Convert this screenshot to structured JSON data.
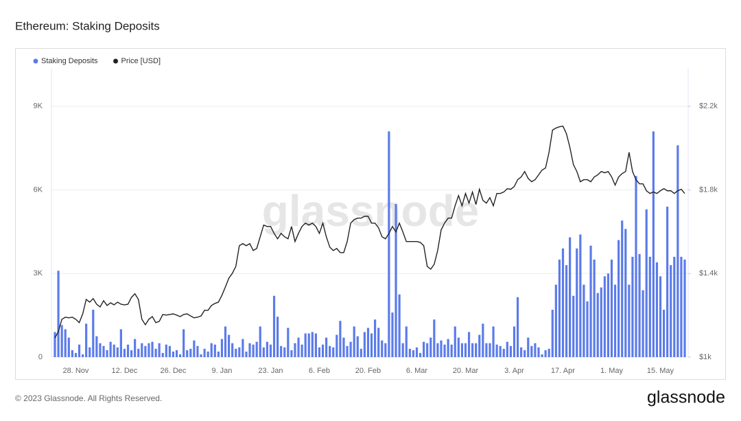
{
  "chart_data": {
    "type": "combo",
    "title": "Ethereum: Staking Deposits",
    "watermark": "glassnode",
    "categories": [
      null,
      null,
      null,
      null,
      null,
      null,
      "28. Nov",
      null,
      null,
      null,
      null,
      null,
      null,
      null,
      null,
      null,
      null,
      null,
      null,
      null,
      "12. Dec",
      null,
      null,
      null,
      null,
      null,
      null,
      null,
      null,
      null,
      null,
      null,
      null,
      null,
      "26. Dec",
      null,
      null,
      null,
      null,
      null,
      null,
      null,
      null,
      null,
      null,
      null,
      null,
      null,
      "9. Jan",
      null,
      null,
      null,
      null,
      null,
      null,
      null,
      null,
      null,
      null,
      null,
      null,
      null,
      "23. Jan",
      null,
      null,
      null,
      null,
      null,
      null,
      null,
      null,
      null,
      null,
      null,
      null,
      null,
      "6. Feb",
      null,
      null,
      null,
      null,
      null,
      null,
      null,
      null,
      null,
      null,
      null,
      null,
      null,
      "20. Feb",
      null,
      null,
      null,
      null,
      null,
      null,
      null,
      null,
      null,
      null,
      null,
      null,
      null,
      "6. Mar",
      null,
      null,
      null,
      null,
      null,
      null,
      null,
      null,
      null,
      null,
      null,
      null,
      null,
      "20. Mar",
      null,
      null,
      null,
      null,
      null,
      null,
      null,
      null,
      null,
      null,
      null,
      null,
      null,
      "3. Apr",
      null,
      null,
      null,
      null,
      null,
      null,
      null,
      null,
      null,
      null,
      null,
      null,
      null,
      "17. Apr",
      null,
      null,
      null,
      null,
      null,
      null,
      null,
      null,
      null,
      null,
      null,
      null,
      null,
      "1. May",
      null,
      null,
      null,
      null,
      null,
      null,
      null,
      null,
      null,
      null,
      null,
      null,
      null,
      "15. May",
      null,
      null,
      null,
      null,
      null,
      null,
      null
    ],
    "series": [
      {
        "name": "Staking Deposits",
        "type": "bar",
        "color": "#5b7be9",
        "axis": "y",
        "values": [
          900,
          3100,
          1150,
          1000,
          700,
          250,
          150,
          450,
          100,
          1200,
          350,
          1700,
          750,
          500,
          400,
          250,
          550,
          450,
          350,
          1000,
          300,
          450,
          250,
          650,
          300,
          500,
          400,
          500,
          550,
          300,
          500,
          150,
          450,
          400,
          200,
          250,
          100,
          1000,
          250,
          300,
          600,
          400,
          100,
          300,
          200,
          500,
          450,
          200,
          650,
          1100,
          800,
          500,
          300,
          350,
          650,
          200,
          500,
          450,
          550,
          1100,
          350,
          550,
          450,
          2200,
          1450,
          400,
          350,
          1050,
          250,
          500,
          700,
          450,
          850,
          850,
          900,
          850,
          350,
          450,
          700,
          400,
          350,
          800,
          1300,
          700,
          400,
          550,
          1100,
          750,
          300,
          900,
          1050,
          850,
          1350,
          1050,
          600,
          500,
          8100,
          1600,
          5500,
          2250,
          500,
          1100,
          300,
          250,
          350,
          150,
          550,
          500,
          700,
          1350,
          500,
          600,
          450,
          650,
          450,
          1100,
          700,
          500,
          500,
          900,
          500,
          500,
          800,
          1200,
          500,
          500,
          1100,
          450,
          400,
          300,
          550,
          400,
          1100,
          2150,
          350,
          250,
          700,
          400,
          500,
          350,
          100,
          250,
          300,
          1700,
          2600,
          3500,
          3900,
          3300,
          4300,
          2200,
          3900,
          4400,
          2600,
          2000,
          4000,
          3500,
          2300,
          2500,
          2900,
          3000,
          3500,
          2600,
          4200,
          4900,
          4600,
          2600,
          3600,
          6500,
          3700,
          2400,
          5300,
          3600,
          8100,
          3400,
          2900,
          1700,
          5400,
          3300,
          3600,
          7600,
          3600,
          3500
        ]
      },
      {
        "name": "Price [USD]",
        "type": "line",
        "color": "#222222",
        "axis": "y2",
        "values": [
          1092,
          1122,
          1181,
          1191,
          1188,
          1191,
          1181,
          1165,
          1207,
          1276,
          1263,
          1280,
          1253,
          1240,
          1270,
          1247,
          1260,
          1250,
          1263,
          1253,
          1250,
          1253,
          1286,
          1303,
          1276,
          1181,
          1155,
          1181,
          1194,
          1165,
          1171,
          1204,
          1201,
          1204,
          1207,
          1201,
          1194,
          1204,
          1207,
          1197,
          1188,
          1191,
          1197,
          1224,
          1224,
          1247,
          1257,
          1263,
          1296,
          1336,
          1378,
          1401,
          1434,
          1533,
          1543,
          1533,
          1543,
          1510,
          1520,
          1576,
          1632,
          1625,
          1625,
          1592,
          1566,
          1592,
          1576,
          1566,
          1625,
          1553,
          1592,
          1625,
          1641,
          1632,
          1641,
          1625,
          1592,
          1641,
          1576,
          1526,
          1510,
          1520,
          1500,
          1500,
          1553,
          1641,
          1658,
          1665,
          1665,
          1674,
          1674,
          1641,
          1641,
          1619,
          1576,
          1566,
          1592,
          1625,
          1599,
          1641,
          1599,
          1553,
          1553,
          1553,
          1553,
          1549,
          1533,
          1434,
          1421,
          1444,
          1510,
          1609,
          1641,
          1665,
          1665,
          1724,
          1773,
          1724,
          1783,
          1737,
          1790,
          1730,
          1803,
          1750,
          1737,
          1763,
          1724,
          1783,
          1783,
          1790,
          1806,
          1803,
          1816,
          1849,
          1862,
          1888,
          1855,
          1839,
          1849,
          1872,
          1895,
          1905,
          1980,
          2086,
          2096,
          2102,
          2105,
          2069,
          2003,
          1921,
          1888,
          1839,
          1849,
          1849,
          1839,
          1862,
          1872,
          1888,
          1882,
          1888,
          1862,
          1823,
          1862,
          1878,
          1888,
          1980,
          1888,
          1849,
          1829,
          1829,
          1796,
          1783,
          1790,
          1783,
          1796,
          1806,
          1796,
          1796,
          1783,
          1796,
          1803,
          1783
        ]
      }
    ],
    "ylim": [
      0,
      10350
    ],
    "yticks": [
      0,
      {
        "value": 3000,
        "label": "3K"
      },
      {
        "value": 6000,
        "label": "6K"
      },
      {
        "value": 9000,
        "label": "9K"
      }
    ],
    "y2lim": [
      1000,
      2380
    ],
    "y2ticks": [
      {
        "value": 1000,
        "label": "$1k"
      },
      {
        "value": 1400,
        "label": "$1.4k"
      },
      {
        "value": 1800,
        "label": "$1.8k"
      },
      {
        "value": 2200,
        "label": "$2.2k"
      }
    ],
    "grid": true,
    "legend": "top-left"
  },
  "footer": "© 2023 Glassnode. All Rights Reserved.",
  "brand": "glassnode"
}
